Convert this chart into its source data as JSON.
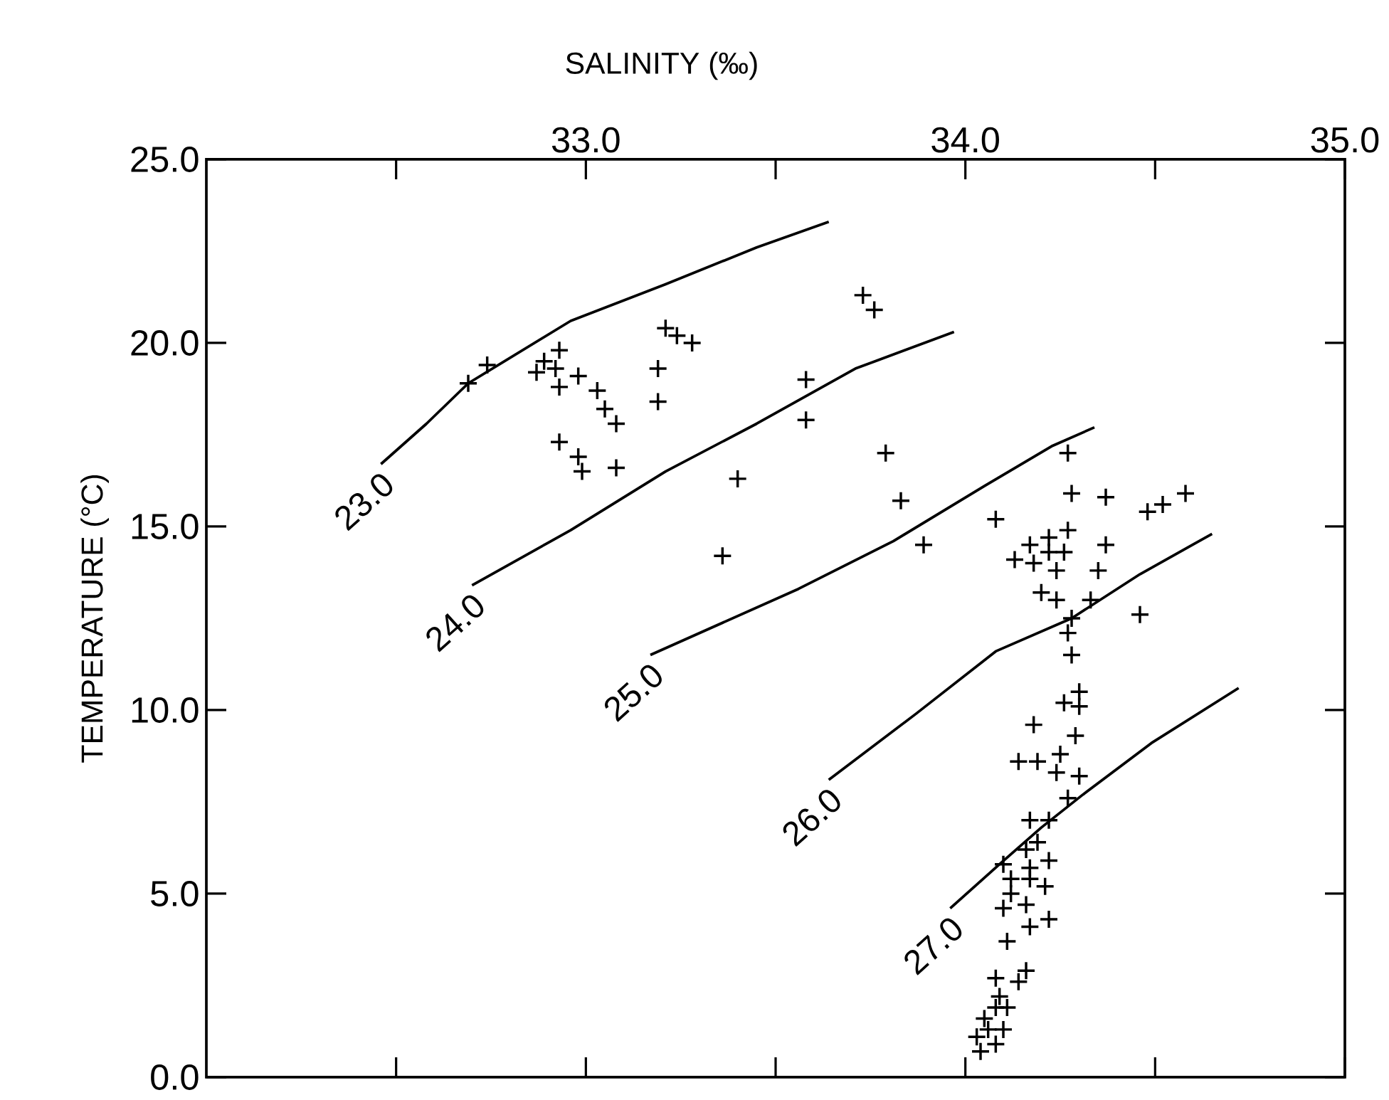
{
  "chart_data": {
    "type": "scatter",
    "xlabel": "SALINITY (‰)",
    "ylabel": "TEMPERATURE (°C)",
    "xlim": [
      32.0,
      35.0
    ],
    "ylim": [
      0.0,
      25.0
    ],
    "xticks": [
      {
        "value": 32.5,
        "label": null
      },
      {
        "value": 33.0,
        "label": "33.0"
      },
      {
        "value": 33.5,
        "label": null
      },
      {
        "value": 34.0,
        "label": "34.0"
      },
      {
        "value": 34.5,
        "label": null
      },
      {
        "value": 35.0,
        "label": "35.0"
      }
    ],
    "yticks": [
      {
        "value": 0,
        "label": "0.0"
      },
      {
        "value": 5,
        "label": "5.0"
      },
      {
        "value": 10,
        "label": "10.0"
      },
      {
        "value": 15,
        "label": "15.0"
      },
      {
        "value": 20,
        "label": "20.0"
      },
      {
        "value": 25,
        "label": "25.0"
      }
    ],
    "series": [
      {
        "color": "#000000",
        "marker": "cross",
        "x": [
          32.69,
          32.74,
          32.87,
          32.89,
          32.92,
          32.93,
          32.93,
          32.98,
          33.03,
          33.05,
          33.08,
          32.93,
          32.98,
          32.99,
          33.08,
          33.19,
          33.19,
          33.21,
          33.24,
          33.28,
          33.73,
          33.76,
          33.58,
          33.58,
          33.4,
          33.36,
          33.79,
          33.83,
          33.89,
          34.27,
          34.28,
          34.37,
          34.48,
          34.52,
          34.58,
          34.08,
          34.27,
          34.17,
          34.22,
          34.22,
          34.26,
          34.37,
          34.13,
          34.18,
          34.24,
          34.35,
          34.2,
          34.24,
          34.33,
          34.46,
          34.28,
          34.27,
          34.28,
          34.3,
          34.26,
          34.3,
          34.18,
          34.29,
          34.14,
          34.19,
          34.25,
          34.24,
          34.3,
          34.27,
          34.17,
          34.22,
          34.16,
          34.19,
          34.22,
          34.1,
          34.17,
          34.12,
          34.17,
          34.21,
          34.12,
          34.1,
          34.16,
          34.17,
          34.22,
          34.11,
          34.08,
          34.16,
          34.14,
          34.09,
          34.05,
          34.08,
          34.11,
          34.06,
          34.1,
          34.03,
          34.08,
          34.04
        ],
        "values": [
          18.9,
          19.4,
          19.2,
          19.5,
          19.3,
          19.8,
          18.8,
          19.1,
          18.7,
          18.2,
          17.8,
          17.3,
          16.9,
          16.5,
          16.6,
          19.3,
          18.4,
          20.4,
          20.2,
          20.0,
          21.3,
          20.9,
          19.0,
          17.9,
          16.3,
          14.2,
          17.0,
          15.7,
          14.5,
          17.0,
          15.9,
          15.8,
          15.4,
          15.6,
          15.9,
          15.2,
          14.9,
          14.5,
          14.7,
          14.3,
          14.3,
          14.5,
          14.1,
          14.0,
          13.8,
          13.8,
          13.2,
          13.0,
          13.0,
          12.6,
          12.5,
          12.1,
          11.5,
          10.5,
          10.2,
          10.1,
          9.6,
          9.3,
          8.6,
          8.6,
          8.8,
          8.3,
          8.2,
          7.6,
          7.0,
          7.0,
          6.2,
          6.4,
          5.9,
          5.8,
          5.7,
          5.4,
          5.4,
          5.2,
          5.0,
          4.6,
          4.7,
          4.1,
          4.3,
          3.7,
          2.7,
          2.9,
          2.6,
          2.2,
          1.6,
          1.9,
          1.9,
          1.3,
          1.3,
          1.1,
          0.9,
          0.7
        ]
      },
      {
        "type": "line",
        "name": "23.0",
        "color": "#000000",
        "x": [
          32.46,
          32.58,
          32.69,
          32.96,
          33.21,
          33.45,
          33.64
        ],
        "values": [
          16.7,
          17.8,
          18.9,
          20.6,
          21.6,
          22.6,
          23.3
        ]
      },
      {
        "type": "line",
        "name": "24.0",
        "color": "#000000",
        "x": [
          32.7,
          32.96,
          33.21,
          33.45,
          33.71,
          33.97
        ],
        "values": [
          13.4,
          14.9,
          16.5,
          17.8,
          19.3,
          20.3
        ]
      },
      {
        "type": "line",
        "name": "25.0",
        "color": "#000000",
        "x": [
          33.17,
          33.56,
          33.81,
          34.05,
          34.23,
          34.34
        ],
        "values": [
          11.5,
          13.3,
          14.6,
          16.1,
          17.2,
          17.7
        ]
      },
      {
        "type": "line",
        "name": "26.0",
        "color": "#000000",
        "x": [
          33.64,
          33.87,
          34.08,
          34.28,
          34.46,
          34.65
        ],
        "values": [
          8.1,
          9.9,
          11.6,
          12.5,
          13.7,
          14.8
        ]
      },
      {
        "type": "line",
        "name": "27.0",
        "color": "#000000",
        "x": [
          33.96,
          34.09,
          34.2,
          34.31,
          34.49,
          34.72
        ],
        "values": [
          4.6,
          5.8,
          6.8,
          7.7,
          9.1,
          10.6
        ]
      }
    ]
  }
}
